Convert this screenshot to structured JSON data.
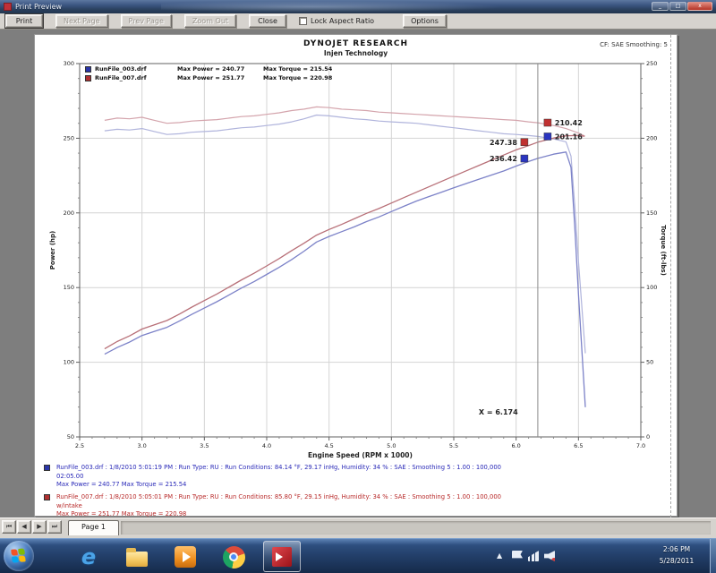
{
  "window": {
    "title": "Print Preview",
    "min_label": "_",
    "max_label": "□",
    "close_label": "x"
  },
  "toolbar": {
    "buttons": [
      {
        "label": "Print",
        "enabled": true
      },
      {
        "label": "Next Page",
        "enabled": false
      },
      {
        "label": "Prev Page",
        "enabled": false
      },
      {
        "label": "Zoom Out",
        "enabled": false
      },
      {
        "label": "Close",
        "enabled": true
      }
    ],
    "lock_aspect_label": "Lock Aspect Ratio",
    "lock_aspect_checked": false,
    "options_label": "Options"
  },
  "report": {
    "title": "DYNOJET RESEARCH",
    "subtitle": "Injen Technology",
    "correction": "CF: SAE    Smoothing: 5"
  },
  "legend": {
    "rows": [
      {
        "file": "RunFile_003.drf",
        "max_power_label": "Max Power = 240.77",
        "max_torque_label": "Max Torque = 215.54",
        "color": "#2a35a8"
      },
      {
        "file": "RunFile_007.drf",
        "max_power_label": "Max Power = 251.77",
        "max_torque_label": "Max Torque = 220.98",
        "color": "#b03030"
      }
    ]
  },
  "chart_data": {
    "type": "line",
    "title": "DYNOJET RESEARCH - Injen Technology",
    "xlabel": "Engine Speed (RPM x 1000)",
    "ylabel_left": "Power (hp)",
    "ylabel_right": "Torque (ft-lbs)",
    "grid": true,
    "x_axis": {
      "min": 2500,
      "max": 7000,
      "major_step": 500,
      "minor_step": 100,
      "tick_labels": [
        "2.5",
        "3.0",
        "3.5",
        "4.0",
        "4.5",
        "5.0",
        "5.5",
        "6.0",
        "6.5",
        "7.0"
      ]
    },
    "y_left": {
      "min": 50,
      "max": 300,
      "major_step": 50,
      "minor_step": 10,
      "tick_labels": [
        "300",
        "250",
        "200",
        "150",
        "100",
        "50"
      ]
    },
    "y_right": {
      "min": 0,
      "max": 250,
      "major_step": 50,
      "minor_step": 10,
      "tick_labels": [
        "250",
        "200",
        "150",
        "100",
        "50",
        "0"
      ]
    },
    "power_formula": "power_hp = torque_lbft * rpm / 5252",
    "series": [
      {
        "name": "RunFile_003.drf",
        "max_power": 240.77,
        "max_torque": 215.54,
        "power_color": "#7c82c8",
        "torque_color": "#b0b4dc",
        "torque_points": [
          [
            2700,
            205
          ],
          [
            2800,
            206
          ],
          [
            2900,
            205.5
          ],
          [
            3000,
            206.5
          ],
          [
            3100,
            204.5
          ],
          [
            3200,
            202.5
          ],
          [
            3300,
            203
          ],
          [
            3400,
            204
          ],
          [
            3500,
            204.5
          ],
          [
            3600,
            205
          ],
          [
            3700,
            206
          ],
          [
            3800,
            207
          ],
          [
            3900,
            207.5
          ],
          [
            4000,
            208.5
          ],
          [
            4100,
            209.5
          ],
          [
            4200,
            211
          ],
          [
            4300,
            213
          ],
          [
            4400,
            215.5
          ],
          [
            4500,
            215
          ],
          [
            4600,
            214
          ],
          [
            4700,
            213
          ],
          [
            4800,
            212.5
          ],
          [
            4900,
            211.5
          ],
          [
            5000,
            211
          ],
          [
            5100,
            210.5
          ],
          [
            5200,
            210
          ],
          [
            5300,
            209
          ],
          [
            5400,
            208
          ],
          [
            5500,
            207
          ],
          [
            5600,
            206
          ],
          [
            5700,
            205
          ],
          [
            5800,
            204
          ],
          [
            5900,
            203
          ],
          [
            6000,
            202.5
          ],
          [
            6100,
            201.8
          ],
          [
            6174,
            201.2
          ],
          [
            6300,
            199.5
          ],
          [
            6400,
            197.6
          ],
          [
            6440,
            188
          ],
          [
            6470,
            155
          ],
          [
            6500,
            118
          ],
          [
            6530,
            84
          ],
          [
            6555,
            56
          ]
        ]
      },
      {
        "name": "RunFile_007.drf",
        "max_power": 251.77,
        "max_torque": 220.98,
        "power_color": "#b87078",
        "torque_color": "#d4a4ac",
        "torque_points": [
          [
            2700,
            212
          ],
          [
            2800,
            213.5
          ],
          [
            2900,
            213
          ],
          [
            3000,
            214
          ],
          [
            3100,
            212
          ],
          [
            3200,
            210
          ],
          [
            3300,
            210.5
          ],
          [
            3400,
            211.5
          ],
          [
            3500,
            212
          ],
          [
            3600,
            212.5
          ],
          [
            3700,
            213.5
          ],
          [
            3800,
            214.5
          ],
          [
            3900,
            215
          ],
          [
            4000,
            216
          ],
          [
            4100,
            217
          ],
          [
            4200,
            218.5
          ],
          [
            4300,
            219.5
          ],
          [
            4400,
            221
          ],
          [
            4500,
            220.5
          ],
          [
            4600,
            219.5
          ],
          [
            4700,
            219
          ],
          [
            4800,
            218.5
          ],
          [
            4900,
            217.5
          ],
          [
            5000,
            217
          ],
          [
            5100,
            216.5
          ],
          [
            5200,
            216
          ],
          [
            5300,
            215.5
          ],
          [
            5400,
            215
          ],
          [
            5500,
            214.5
          ],
          [
            5600,
            214
          ],
          [
            5700,
            213.5
          ],
          [
            5800,
            213
          ],
          [
            5900,
            212.5
          ],
          [
            6000,
            212
          ],
          [
            6100,
            211
          ],
          [
            6174,
            210.4
          ],
          [
            6300,
            208.5
          ],
          [
            6400,
            206.5
          ],
          [
            6500,
            203.5
          ],
          [
            6550,
            201.5
          ]
        ]
      }
    ],
    "cursor": {
      "rpm": 6174,
      "label": "X = 6.174",
      "readouts": [
        {
          "text": "247.38",
          "value": 247.38,
          "measure": "power",
          "side": "left",
          "color": "#c03030"
        },
        {
          "text": "236.42",
          "value": 236.42,
          "measure": "power",
          "side": "left",
          "color": "#2a35c0"
        },
        {
          "text": "210.42",
          "value": 210.42,
          "measure": "torque",
          "side": "right",
          "color": "#c03030"
        },
        {
          "text": "201.16",
          "value": 201.16,
          "measure": "torque",
          "side": "right",
          "color": "#2a35c0"
        }
      ]
    }
  },
  "footer_runs": [
    {
      "line1": "RunFile_003.drf : 1/8/2010 5:01:19 PM : Run Type: RU : Run Conditions: 84.14 °F, 29.17 inHg, Humidity: 34 % : SAE : Smoothing 5 : 1.00 : 100,000",
      "line2": "02:05.00",
      "line3": "Max Power = 240.77   Max Torque = 215.54"
    },
    {
      "line1": "RunFile_007.drf : 1/8/2010 5:05:01 PM : Run Type: RU : Run Conditions: 85.80 °F, 29.15 inHg, Humidity: 34 % : SAE : Smoothing 5 : 1.00 : 100,000",
      "line2": "w/intake",
      "line3": "Max Power = 251.77   Max Torque = 220.98"
    }
  ],
  "pagebar": {
    "nav": [
      "⏮",
      "◀",
      "▶",
      "⏭"
    ],
    "tab_label": "Page 1"
  },
  "taskbar": {
    "icons": [
      "start-orb",
      "internet-explorer",
      "folder-explorer",
      "media-player",
      "chrome",
      "winpep-active"
    ],
    "tray_icons": [
      "hidden-icons-caret",
      "action-center-flag",
      "network-icon",
      "volume-icon"
    ],
    "clock_time": "2:06 PM",
    "clock_date": "5/28/2011"
  }
}
